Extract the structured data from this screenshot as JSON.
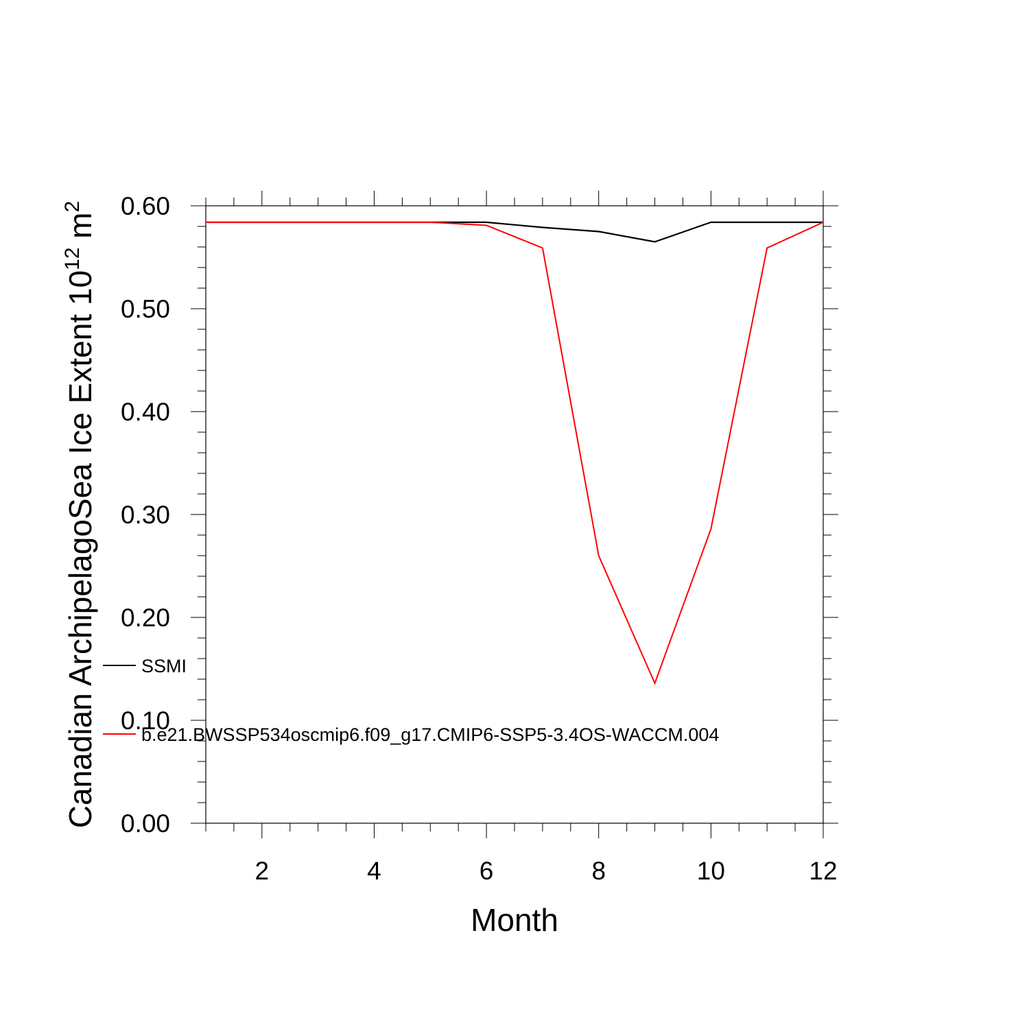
{
  "chart_data": {
    "type": "line",
    "xlabel": "Month",
    "ylabel_main": "Canadian ArchipelagoSea Ice Extent 10",
    "ylabel_exp": "12",
    "ylabel_unit": " m",
    "ylabel_unit_exp": "2",
    "xlim": [
      1,
      12
    ],
    "ylim": [
      0,
      0.6
    ],
    "x_ticks": [
      2,
      4,
      6,
      8,
      10,
      12
    ],
    "x_tick_labels": [
      "2",
      "4",
      "6",
      "8",
      "10",
      "12"
    ],
    "y_ticks": [
      0,
      0.1,
      0.2,
      0.3,
      0.4,
      0.5,
      0.6
    ],
    "y_tick_labels": [
      "0.00",
      "0.10",
      "0.20",
      "0.30",
      "0.40",
      "0.50",
      "0.60"
    ],
    "x": [
      1,
      2,
      3,
      4,
      5,
      6,
      7,
      8,
      9,
      10,
      11,
      12
    ],
    "series": [
      {
        "name": "SSMI",
        "color": "#000000",
        "values": [
          0.584,
          0.584,
          0.584,
          0.584,
          0.584,
          0.584,
          0.579,
          0.575,
          0.565,
          0.584,
          0.584,
          0.584
        ]
      },
      {
        "name": "b.e21.BWSSP534oscmip6.f09_g17.CMIP6-SSP5-3.4OS-WACCM.004",
        "color": "#ff0000",
        "values": [
          0.584,
          0.584,
          0.584,
          0.584,
          0.584,
          0.581,
          0.559,
          0.26,
          0.136,
          0.286,
          0.559,
          0.584
        ]
      }
    ],
    "legend_position": "lower-left",
    "grid": false
  }
}
